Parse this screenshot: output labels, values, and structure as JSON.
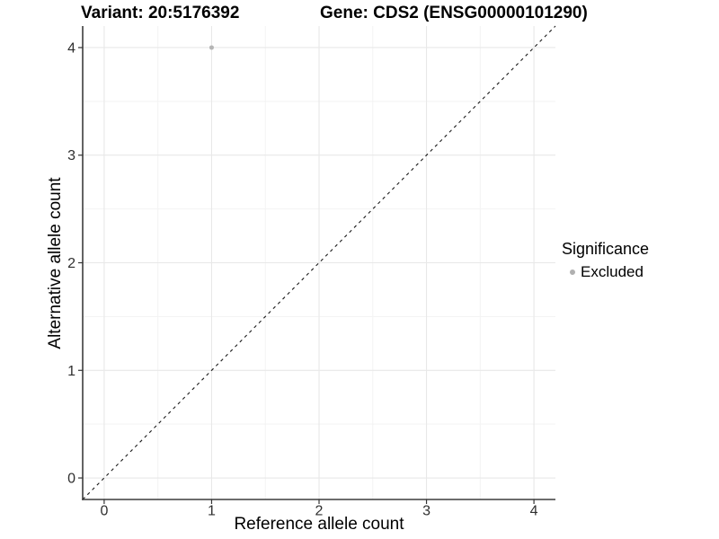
{
  "chart_data": {
    "type": "scatter",
    "titles": {
      "variant": "Variant: 20:5176392",
      "gene": "Gene: CDS2 (ENSG00000101290)"
    },
    "xlabel": "Reference allele count",
    "ylabel": "Alternative allele count",
    "xlim": [
      -0.2,
      4.2
    ],
    "ylim": [
      -0.2,
      4.2
    ],
    "xticks": [
      0,
      1,
      2,
      3,
      4
    ],
    "yticks": [
      0,
      1,
      2,
      3,
      4
    ],
    "x_minor": [
      0.5,
      1.5,
      2.5,
      3.5
    ],
    "y_minor": [
      0.5,
      1.5,
      2.5,
      3.5
    ],
    "grid": "major+minor",
    "legend_position": "right",
    "points": [
      {
        "x": 1,
        "y": 4,
        "significance": "Excluded"
      }
    ],
    "identity_line": {
      "style": "dashed",
      "from": [
        -0.2,
        -0.2
      ],
      "to": [
        4.2,
        4.2
      ]
    },
    "legend": {
      "title": "Significance",
      "items": [
        {
          "label": "Excluded",
          "color": "#b0b0b0",
          "marker": "circle"
        }
      ]
    },
    "colors": {
      "background": "#ffffff",
      "grid_major": "#e8e8e8",
      "grid_minor": "#f3f3f3",
      "axis_line": "#3c3c3c",
      "tick_mark": "#333333",
      "tick_label": "#2f2f2f",
      "title_text": "#000000",
      "point": "#b5b5b5",
      "identity_line": "#1a1a1a"
    }
  }
}
